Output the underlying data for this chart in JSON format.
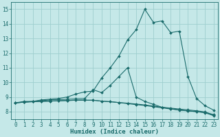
{
  "title": "",
  "xlabel": "Humidex (Indice chaleur)",
  "xlim": [
    -0.5,
    23.5
  ],
  "ylim": [
    7.5,
    15.5
  ],
  "yticks": [
    8,
    9,
    10,
    11,
    12,
    13,
    14,
    15
  ],
  "xticks": [
    0,
    1,
    2,
    3,
    4,
    5,
    6,
    7,
    8,
    9,
    10,
    11,
    12,
    13,
    14,
    15,
    16,
    17,
    18,
    19,
    20,
    21,
    22,
    23
  ],
  "background_color": "#c5e8e8",
  "grid_color": "#9ecece",
  "line_color": "#1a6b6b",
  "lines": [
    [
      8.6,
      8.7,
      8.7,
      8.8,
      8.85,
      8.9,
      9.0,
      9.2,
      9.35,
      9.4,
      10.3,
      11.0,
      11.8,
      12.9,
      13.6,
      15.0,
      14.1,
      14.2,
      13.4,
      13.5,
      10.4,
      8.9,
      8.4,
      8.1
    ],
    [
      8.6,
      8.65,
      8.7,
      8.75,
      8.8,
      8.82,
      8.85,
      8.87,
      8.88,
      9.5,
      9.3,
      9.8,
      10.4,
      11.0,
      9.0,
      8.7,
      8.5,
      8.3,
      8.2,
      8.1,
      8.05,
      8.0,
      7.95,
      7.8
    ],
    [
      8.6,
      8.65,
      8.68,
      8.7,
      8.72,
      8.74,
      8.76,
      8.78,
      8.78,
      8.78,
      8.72,
      8.68,
      8.62,
      8.58,
      8.52,
      8.46,
      8.38,
      8.3,
      8.24,
      8.18,
      8.12,
      8.06,
      7.98,
      7.75
    ],
    [
      8.6,
      8.65,
      8.68,
      8.7,
      8.72,
      8.74,
      8.76,
      8.78,
      8.78,
      8.78,
      8.72,
      8.68,
      8.62,
      8.55,
      8.48,
      8.42,
      8.34,
      8.26,
      8.18,
      8.12,
      8.06,
      8.0,
      7.92,
      7.72
    ]
  ]
}
